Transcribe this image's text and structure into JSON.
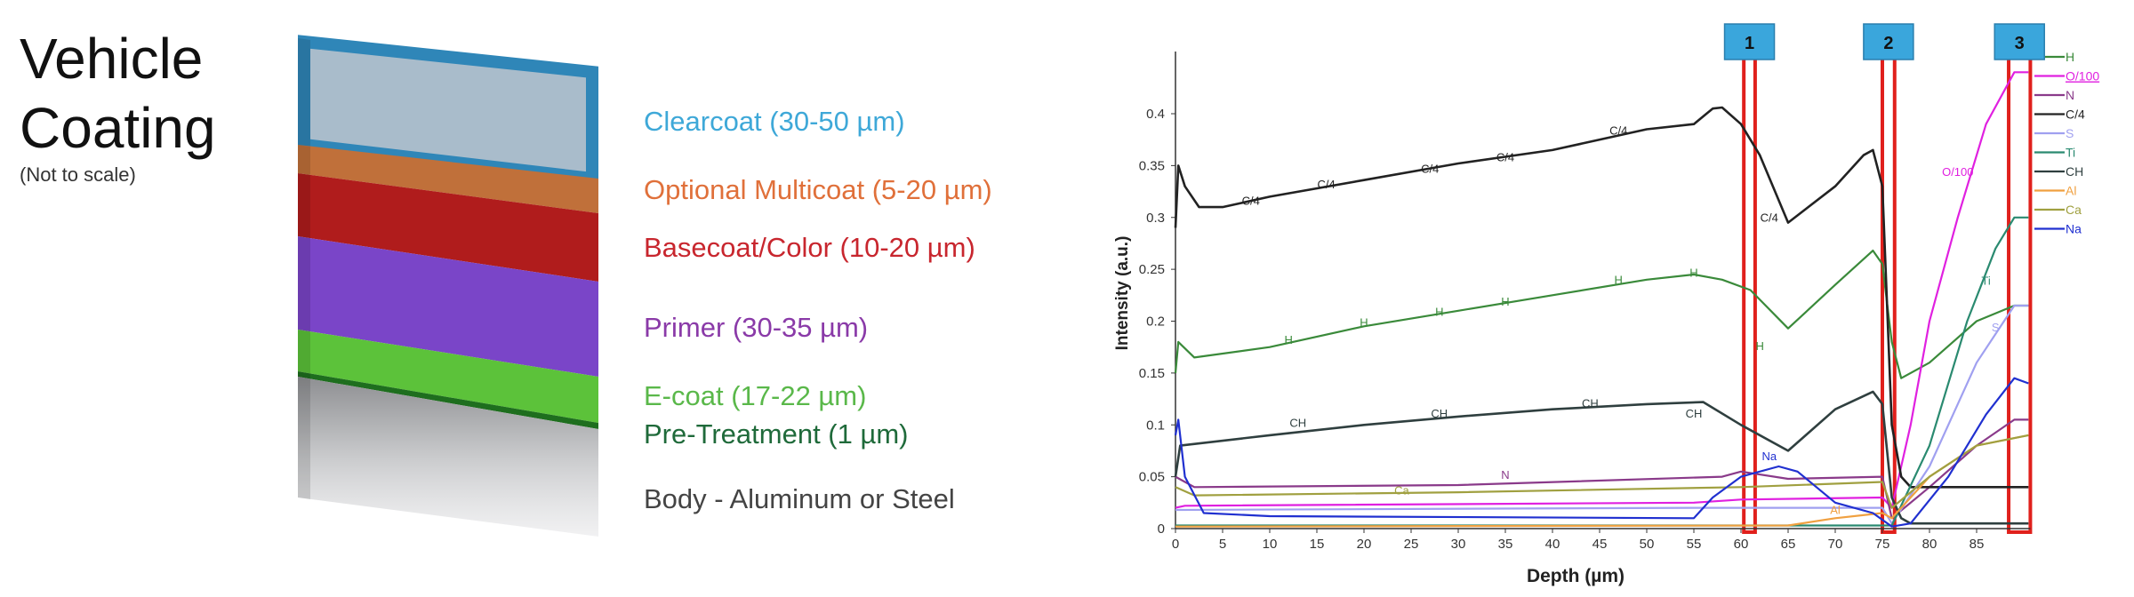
{
  "diagram": {
    "title_line1": "Vehicle",
    "title_line2": "Coating",
    "subtitle": "(Not to scale)",
    "layers": [
      {
        "label": "Clearcoat (30-50 µm)",
        "color": "#3ea8d8",
        "fill": "#a9bccb"
      },
      {
        "label": "Optional Multicoat (5-20 µm)",
        "color": "#e0703a",
        "fill": "#c0703a"
      },
      {
        "label": "Basecoat/Color (10-20 µm)",
        "color": "#c8262e",
        "fill": "#b01c1c"
      },
      {
        "label": "Primer (30-35 µm)",
        "color": "#8a3aa8",
        "fill": "#7a45c8"
      },
      {
        "label": "E-coat (17-22 µm)",
        "color": "#5ab84a",
        "fill": "#5cc23a"
      },
      {
        "label": "Pre-Treatment (1 µm)",
        "color": "#1f6a3a",
        "fill": "#1e6e1e"
      },
      {
        "label": "Body - Aluminum or Steel",
        "color": "#444444",
        "fill": "#b9babc"
      }
    ]
  },
  "chart_data": {
    "type": "line",
    "xlabel": "Depth (µm)",
    "ylabel": "Intensity (a.u.)",
    "xlim": [
      0,
      91
    ],
    "ylim": [
      0,
      0.46
    ],
    "xticks": [
      0,
      5,
      10,
      15,
      20,
      25,
      30,
      35,
      40,
      45,
      50,
      55,
      60,
      65,
      70,
      75,
      80,
      85
    ],
    "yticks": [
      0,
      0.05,
      0.1,
      0.15,
      0.2,
      0.25,
      0.3,
      0.35,
      0.4
    ],
    "ytick_labels": [
      "0",
      "0.05",
      "0.1",
      "0.15",
      "0.2",
      "0.25",
      "0.3",
      "0.35",
      "0.4"
    ],
    "grid": false,
    "legend_position": "right",
    "markers": [
      {
        "label": "1",
        "x_range": [
          60.3,
          61.5
        ]
      },
      {
        "label": "2",
        "x_range": [
          75,
          76.3
        ]
      },
      {
        "label": "3",
        "x_range": [
          88.4,
          90.7
        ]
      }
    ],
    "series": [
      {
        "name": "H",
        "color": "#3a8a3a",
        "points": [
          [
            0,
            0.15
          ],
          [
            0.3,
            0.18
          ],
          [
            2,
            0.165
          ],
          [
            10,
            0.175
          ],
          [
            20,
            0.195
          ],
          [
            30,
            0.21
          ],
          [
            40,
            0.225
          ],
          [
            50,
            0.24
          ],
          [
            55,
            0.245
          ],
          [
            58,
            0.24
          ],
          [
            61,
            0.23
          ],
          [
            65,
            0.193
          ],
          [
            70,
            0.235
          ],
          [
            74,
            0.268
          ],
          [
            75,
            0.255
          ],
          [
            76,
            0.18
          ],
          [
            77,
            0.145
          ],
          [
            80,
            0.16
          ],
          [
            85,
            0.2
          ],
          [
            89,
            0.215
          ],
          [
            90.5,
            0.215
          ]
        ]
      },
      {
        "name": "O/100",
        "color": "#e020e0",
        "underline": true,
        "points": [
          [
            0,
            0.02
          ],
          [
            1,
            0.022
          ],
          [
            55,
            0.025
          ],
          [
            60,
            0.028
          ],
          [
            75,
            0.03
          ],
          [
            76,
            0.02
          ],
          [
            78,
            0.1
          ],
          [
            80,
            0.2
          ],
          [
            83,
            0.3
          ],
          [
            86,
            0.39
          ],
          [
            89,
            0.44
          ],
          [
            90.5,
            0.44
          ]
        ]
      },
      {
        "name": "N",
        "color": "#8a3a8a",
        "points": [
          [
            0,
            0.05
          ],
          [
            2,
            0.04
          ],
          [
            30,
            0.042
          ],
          [
            58,
            0.05
          ],
          [
            60,
            0.055
          ],
          [
            65,
            0.048
          ],
          [
            75,
            0.05
          ],
          [
            76,
            0.01
          ],
          [
            80,
            0.04
          ],
          [
            85,
            0.08
          ],
          [
            89,
            0.105
          ],
          [
            90.5,
            0.105
          ]
        ]
      },
      {
        "name": "C/4",
        "color": "#222222",
        "points": [
          [
            0,
            0.29
          ],
          [
            0.3,
            0.35
          ],
          [
            1,
            0.33
          ],
          [
            2.5,
            0.31
          ],
          [
            5,
            0.31
          ],
          [
            10,
            0.32
          ],
          [
            20,
            0.336
          ],
          [
            30,
            0.352
          ],
          [
            40,
            0.365
          ],
          [
            50,
            0.385
          ],
          [
            55,
            0.39
          ],
          [
            57,
            0.405
          ],
          [
            58,
            0.406
          ],
          [
            60,
            0.39
          ],
          [
            62,
            0.36
          ],
          [
            65,
            0.295
          ],
          [
            70,
            0.33
          ],
          [
            73,
            0.36
          ],
          [
            74,
            0.365
          ],
          [
            75,
            0.33
          ],
          [
            76,
            0.1
          ],
          [
            77,
            0.05
          ],
          [
            78,
            0.04
          ],
          [
            85,
            0.04
          ],
          [
            90.5,
            0.04
          ]
        ]
      },
      {
        "name": "S",
        "color": "#a0a0f0",
        "points": [
          [
            0,
            0.018
          ],
          [
            55,
            0.02
          ],
          [
            75,
            0.02
          ],
          [
            76,
            0.005
          ],
          [
            80,
            0.06
          ],
          [
            85,
            0.16
          ],
          [
            89,
            0.215
          ],
          [
            90.5,
            0.215
          ]
        ]
      },
      {
        "name": "Ti",
        "color": "#2a8a70",
        "points": [
          [
            0,
            0.003
          ],
          [
            76,
            0.003
          ],
          [
            80,
            0.08
          ],
          [
            84,
            0.2
          ],
          [
            87,
            0.27
          ],
          [
            89,
            0.3
          ],
          [
            90.5,
            0.3
          ]
        ]
      },
      {
        "name": "CH",
        "color": "#2f3f3f",
        "points": [
          [
            0,
            0.05
          ],
          [
            0.5,
            0.08
          ],
          [
            10,
            0.09
          ],
          [
            20,
            0.1
          ],
          [
            30,
            0.108
          ],
          [
            40,
            0.115
          ],
          [
            50,
            0.12
          ],
          [
            56,
            0.122
          ],
          [
            60,
            0.1
          ],
          [
            65,
            0.075
          ],
          [
            70,
            0.115
          ],
          [
            74,
            0.132
          ],
          [
            75,
            0.12
          ],
          [
            76,
            0.03
          ],
          [
            77,
            0.01
          ],
          [
            78,
            0.005
          ],
          [
            90.5,
            0.005
          ]
        ]
      },
      {
        "name": "Al",
        "color": "#f0a040",
        "points": [
          [
            0,
            0.002
          ],
          [
            65,
            0.003
          ],
          [
            70,
            0.01
          ],
          [
            75,
            0.015
          ],
          [
            76,
            0.01
          ],
          [
            80,
            0.05
          ],
          [
            85,
            0.08
          ],
          [
            90.5,
            0.09
          ]
        ]
      },
      {
        "name": "Ca",
        "color": "#a0a040",
        "points": [
          [
            0,
            0.04
          ],
          [
            2,
            0.032
          ],
          [
            30,
            0.035
          ],
          [
            60,
            0.04
          ],
          [
            75,
            0.045
          ],
          [
            76,
            0.02
          ],
          [
            80,
            0.05
          ],
          [
            85,
            0.08
          ],
          [
            90.5,
            0.09
          ]
        ]
      },
      {
        "name": "Na",
        "color": "#2030d0",
        "points": [
          [
            0,
            0.09
          ],
          [
            0.3,
            0.105
          ],
          [
            1,
            0.05
          ],
          [
            3,
            0.015
          ],
          [
            10,
            0.012
          ],
          [
            55,
            0.01
          ],
          [
            57,
            0.03
          ],
          [
            60,
            0.05
          ],
          [
            64,
            0.06
          ],
          [
            66,
            0.055
          ],
          [
            70,
            0.025
          ],
          [
            74,
            0.015
          ],
          [
            76,
            0.002
          ],
          [
            78,
            0.005
          ],
          [
            82,
            0.05
          ],
          [
            86,
            0.11
          ],
          [
            89,
            0.145
          ],
          [
            90.5,
            0.14
          ]
        ]
      }
    ],
    "annotations": [
      {
        "text": "C/4",
        "x": 8,
        "y": 0.312,
        "color": "#222222"
      },
      {
        "text": "C/4",
        "x": 16,
        "y": 0.328,
        "color": "#222222"
      },
      {
        "text": "C/4",
        "x": 27,
        "y": 0.343,
        "color": "#222222"
      },
      {
        "text": "C/4",
        "x": 35,
        "y": 0.354,
        "color": "#222222"
      },
      {
        "text": "C/4",
        "x": 47,
        "y": 0.38,
        "color": "#222222"
      },
      {
        "text": "C/4",
        "x": 63,
        "y": 0.296,
        "color": "#222222"
      },
      {
        "text": "H",
        "x": 12,
        "y": 0.178,
        "color": "#3a8a3a"
      },
      {
        "text": "H",
        "x": 20,
        "y": 0.195,
        "color": "#3a8a3a"
      },
      {
        "text": "H",
        "x": 28,
        "y": 0.205,
        "color": "#3a8a3a"
      },
      {
        "text": "H",
        "x": 35,
        "y": 0.215,
        "color": "#3a8a3a"
      },
      {
        "text": "H",
        "x": 47,
        "y": 0.236,
        "color": "#3a8a3a"
      },
      {
        "text": "H",
        "x": 55,
        "y": 0.243,
        "color": "#3a8a3a"
      },
      {
        "text": "H",
        "x": 62,
        "y": 0.172,
        "color": "#3a8a3a"
      },
      {
        "text": "CH",
        "x": 13,
        "y": 0.098,
        "color": "#2f3f3f"
      },
      {
        "text": "CH",
        "x": 28,
        "y": 0.107,
        "color": "#2f3f3f"
      },
      {
        "text": "CH",
        "x": 44,
        "y": 0.117,
        "color": "#2f3f3f"
      },
      {
        "text": "CH",
        "x": 55,
        "y": 0.107,
        "color": "#2f3f3f"
      },
      {
        "text": "N",
        "x": 35,
        "y": 0.048,
        "color": "#8a3a8a"
      },
      {
        "text": "Ca",
        "x": 24,
        "y": 0.033,
        "color": "#a0a040"
      },
      {
        "text": "Na",
        "x": 63,
        "y": 0.066,
        "color": "#2030d0"
      },
      {
        "text": "Al",
        "x": 70,
        "y": 0.014,
        "color": "#f0a040"
      },
      {
        "text": "O/100",
        "x": 83,
        "y": 0.34,
        "color": "#e020e0"
      },
      {
        "text": "Ti",
        "x": 86,
        "y": 0.235,
        "color": "#2a8a70"
      },
      {
        "text": "S",
        "x": 87,
        "y": 0.19,
        "color": "#a0a0f0"
      }
    ]
  }
}
